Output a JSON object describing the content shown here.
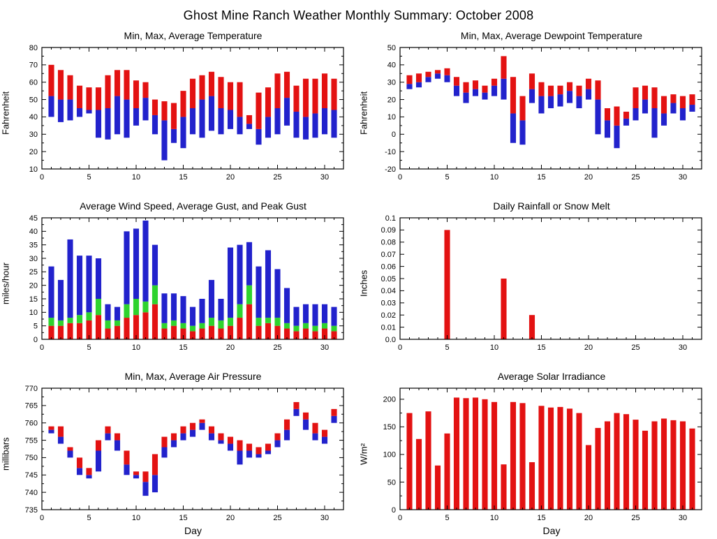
{
  "page_title": "Ghost Mine Ranch Weather Monthly Summary: October 2008",
  "days": [
    1,
    2,
    3,
    4,
    5,
    6,
    7,
    8,
    9,
    10,
    11,
    12,
    13,
    14,
    15,
    16,
    17,
    18,
    19,
    20,
    21,
    22,
    23,
    24,
    25,
    26,
    27,
    28,
    29,
    30,
    31
  ],
  "colors": {
    "red": "#e31212",
    "blue": "#2222cc",
    "green": "#2ed32e"
  },
  "chart_data": [
    {
      "id": "temperature",
      "type": "range-bar",
      "title": "Min, Max, Average Temperature",
      "ylabel": "Fahrenheit",
      "xlabel": "",
      "xlim": [
        0,
        32
      ],
      "ylim": [
        10,
        80
      ],
      "xticks": [
        0,
        5,
        10,
        15,
        20,
        25,
        30
      ],
      "yticks": [
        10,
        20,
        30,
        40,
        50,
        60,
        70,
        80
      ],
      "series_names": [
        "Min",
        "Average",
        "Max"
      ],
      "color_lower": "#2222cc",
      "color_upper": "#e31212",
      "min": [
        40,
        37,
        38,
        40,
        42,
        28,
        27,
        30,
        28,
        35,
        38,
        30,
        15,
        25,
        22,
        30,
        28,
        32,
        30,
        33,
        30,
        33,
        24,
        28,
        30,
        35,
        28,
        27,
        28,
        30,
        28
      ],
      "avg": [
        52,
        50,
        50,
        45,
        44,
        44,
        45,
        52,
        50,
        45,
        51,
        41,
        38,
        33,
        40,
        45,
        50,
        52,
        45,
        44,
        40,
        36,
        33,
        40,
        45,
        51,
        43,
        40,
        42,
        45,
        44
      ],
      "max": [
        70,
        67,
        64,
        58,
        57,
        57,
        64,
        67,
        67,
        61,
        60,
        50,
        49,
        48,
        55,
        62,
        64,
        66,
        63,
        60,
        60,
        41,
        54,
        57,
        65,
        66,
        58,
        62,
        62,
        65,
        62
      ]
    },
    {
      "id": "dewpoint",
      "type": "range-bar",
      "title": "Min, Max, Average Dewpoint Temperature",
      "ylabel": "Fahrenheit",
      "xlabel": "",
      "xlim": [
        0,
        32
      ],
      "ylim": [
        -20,
        50
      ],
      "xticks": [
        0,
        5,
        10,
        15,
        20,
        25,
        30
      ],
      "yticks": [
        -20,
        -10,
        0,
        10,
        20,
        30,
        40,
        50
      ],
      "series_names": [
        "Min",
        "Average",
        "Max"
      ],
      "color_lower": "#2222cc",
      "color_upper": "#e31212",
      "min": [
        26,
        27,
        30,
        32,
        30,
        22,
        18,
        22,
        20,
        22,
        20,
        -5,
        -6,
        18,
        12,
        15,
        16,
        18,
        15,
        20,
        0,
        -2,
        -8,
        5,
        8,
        12,
        -2,
        5,
        12,
        8,
        13
      ],
      "avg": [
        29,
        30,
        33,
        35,
        34,
        28,
        24,
        26,
        24,
        28,
        32,
        12,
        8,
        26,
        22,
        22,
        23,
        25,
        22,
        26,
        20,
        8,
        5,
        9,
        15,
        20,
        15,
        12,
        18,
        15,
        17
      ],
      "max": [
        34,
        35,
        36,
        37,
        38,
        33,
        30,
        31,
        28,
        32,
        45,
        33,
        22,
        35,
        30,
        28,
        28,
        30,
        28,
        32,
        31,
        15,
        16,
        13,
        27,
        28,
        27,
        22,
        23,
        22,
        23
      ]
    },
    {
      "id": "wind",
      "type": "stacked-bar",
      "title": "Average Wind Speed, Average Gust, and Peak Gust",
      "ylabel": "miles/hour",
      "xlabel": "",
      "xlim": [
        0,
        32
      ],
      "ylim": [
        0,
        45
      ],
      "xticks": [
        0,
        5,
        10,
        15,
        20,
        25,
        30
      ],
      "yticks": [
        0,
        5,
        10,
        15,
        20,
        25,
        30,
        35,
        40,
        45
      ],
      "series": [
        {
          "name": "Average Wind Speed",
          "color": "#e31212",
          "values": [
            5,
            5,
            6,
            6,
            7,
            9,
            4,
            5,
            8,
            9,
            10,
            13,
            4,
            5,
            4,
            3,
            4,
            5,
            4,
            5,
            8,
            13,
            5,
            6,
            5,
            4,
            3,
            4,
            3,
            4,
            3
          ]
        },
        {
          "name": "Average Gust",
          "color": "#2ed32e",
          "values": [
            8,
            7,
            8,
            9,
            10,
            15,
            7,
            7,
            13,
            15,
            14,
            20,
            6,
            7,
            6,
            5,
            6,
            8,
            7,
            8,
            13,
            20,
            8,
            8,
            8,
            6,
            5,
            6,
            5,
            6,
            5
          ]
        },
        {
          "name": "Peak Gust",
          "color": "#2222cc",
          "values": [
            27,
            22,
            37,
            31,
            31,
            30,
            13,
            12,
            40,
            41,
            44,
            35,
            17,
            17,
            16,
            12,
            15,
            22,
            15,
            34,
            35,
            36,
            27,
            33,
            26,
            19,
            12,
            13,
            13,
            13,
            12
          ]
        }
      ]
    },
    {
      "id": "rainfall",
      "type": "bar",
      "title": "Daily Rainfall or Snow Melt",
      "ylabel": "Inches",
      "xlabel": "",
      "xlim": [
        0,
        32
      ],
      "ylim": [
        0,
        0.1
      ],
      "xticks": [
        0,
        5,
        10,
        15,
        20,
        25,
        30
      ],
      "yticks": [
        0,
        0.01,
        0.02,
        0.03,
        0.04,
        0.05,
        0.06,
        0.07,
        0.08,
        0.09,
        0.1
      ],
      "ytick_labels": [
        "0.0",
        "0.01",
        "0.02",
        "0.03",
        "0.04",
        "0.05",
        "0.06",
        "0.07",
        "0.08",
        "0.09",
        "0.1"
      ],
      "color": "#e31212",
      "days": [
        5,
        11,
        14
      ],
      "values": [
        0.09,
        0.05,
        0.02
      ]
    },
    {
      "id": "pressure",
      "type": "range-bar",
      "title": "Min, Max, Average Air Pressure",
      "ylabel": "millibars",
      "xlabel": "Day",
      "xlim": [
        0,
        32
      ],
      "ylim": [
        735,
        770
      ],
      "xticks": [
        0,
        5,
        10,
        15,
        20,
        25,
        30
      ],
      "yticks": [
        735,
        740,
        745,
        750,
        755,
        760,
        765,
        770
      ],
      "series_names": [
        "Min",
        "Average",
        "Max"
      ],
      "color_lower": "#2222cc",
      "color_upper": "#e31212",
      "min": [
        757,
        754,
        750,
        745,
        744,
        746,
        755,
        752,
        745,
        744,
        739,
        740,
        750,
        753,
        755,
        756,
        758,
        755,
        754,
        752,
        748,
        750,
        750,
        751,
        753,
        755,
        762,
        758,
        755,
        754,
        760
      ],
      "avg": [
        758,
        756,
        752,
        747,
        745,
        752,
        757,
        755,
        748,
        745,
        743,
        745,
        753,
        755,
        757,
        758,
        760,
        757,
        755,
        754,
        752,
        752,
        751,
        752,
        755,
        758,
        764,
        761,
        757,
        756,
        762
      ],
      "max": [
        759,
        759,
        753,
        750,
        747,
        755,
        759,
        757,
        752,
        746,
        746,
        751,
        756,
        757,
        759,
        760,
        761,
        759,
        757,
        756,
        755,
        754,
        753,
        754,
        757,
        761,
        766,
        763,
        760,
        758,
        764
      ]
    },
    {
      "id": "solar",
      "type": "bar",
      "title": "Average Solar Irradiance",
      "ylabel": "W/m²",
      "xlabel": "Day",
      "xlim": [
        0,
        32
      ],
      "ylim": [
        0,
        220
      ],
      "xticks": [
        0,
        5,
        10,
        15,
        20,
        25,
        30
      ],
      "yticks": [
        0,
        50,
        100,
        150,
        200
      ],
      "color": "#e31212",
      "values": [
        175,
        128,
        178,
        80,
        138,
        203,
        202,
        203,
        200,
        195,
        82,
        195,
        193,
        86,
        188,
        185,
        186,
        183,
        175,
        117,
        148,
        160,
        175,
        173,
        163,
        143,
        160,
        165,
        162,
        160,
        147
      ]
    }
  ]
}
